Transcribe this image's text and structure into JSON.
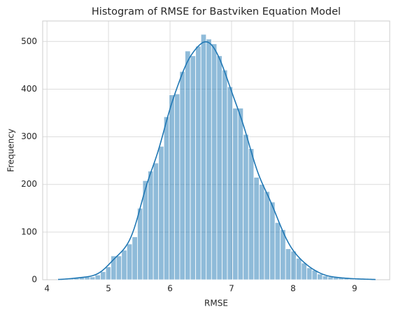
{
  "chart_data": {
    "type": "histogram",
    "title": "Histogram of RMSE for Bastviken Equation Model",
    "x_label": "RMSE",
    "y_label": "Frequency",
    "bins": [
      4.18,
      4.266,
      4.352,
      4.438,
      4.524,
      4.61,
      4.696,
      4.782,
      4.868,
      4.954,
      5.04,
      5.126,
      5.212,
      5.298,
      5.384,
      5.47,
      5.556,
      5.642,
      5.728,
      5.814,
      5.9,
      5.986,
      6.072,
      6.158,
      6.244,
      6.33,
      6.416,
      6.502,
      6.588,
      6.674,
      6.76,
      6.846,
      6.932,
      7.018,
      7.104,
      7.19,
      7.276,
      7.362,
      7.448,
      7.534,
      7.62,
      7.706,
      7.792,
      7.878,
      7.964,
      8.05,
      8.136,
      8.222,
      8.308,
      8.394,
      8.48,
      8.566,
      8.652,
      8.738,
      8.824,
      8.91,
      8.996,
      9.082,
      9.168,
      9.254,
      9.34
    ],
    "values": [
      1,
      1,
      2,
      4,
      5,
      6,
      6,
      10,
      17,
      27,
      50,
      50,
      62,
      75,
      90,
      150,
      208,
      228,
      245,
      280,
      342,
      388,
      390,
      437,
      480,
      470,
      490,
      515,
      505,
      495,
      470,
      440,
      405,
      360,
      360,
      305,
      275,
      215,
      200,
      185,
      163,
      120,
      105,
      65,
      60,
      45,
      35,
      25,
      20,
      12,
      8,
      6,
      5,
      4,
      3,
      2,
      2,
      1,
      1,
      1
    ],
    "color": "#1f77b4",
    "kde": true,
    "xlim": [
      3.93,
      9.57
    ],
    "xticks": [
      4,
      5,
      6,
      7,
      8,
      9
    ],
    "ylim": [
      0,
      543
    ],
    "yticks": [
      0,
      100,
      200,
      300,
      400,
      500
    ],
    "grid": true
  }
}
